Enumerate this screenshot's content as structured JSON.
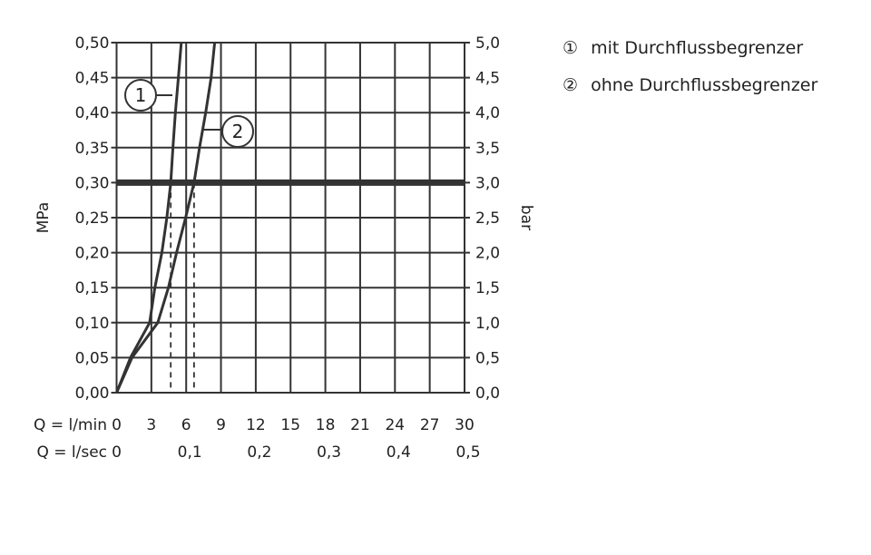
{
  "chart_data": {
    "type": "line",
    "xlabel_rows": [
      "Q = l/min",
      "Q = l/sec"
    ],
    "x_ticks_lmin": [
      "0",
      "3",
      "6",
      "9",
      "12",
      "15",
      "18",
      "21",
      "24",
      "27",
      "30"
    ],
    "x_ticks_lsec": [
      {
        "label": "0",
        "lmin": 0
      },
      {
        "label": "0,1",
        "lmin": 6
      },
      {
        "label": "0,2",
        "lmin": 12
      },
      {
        "label": "0,3",
        "lmin": 18
      },
      {
        "label": "0,4",
        "lmin": 24
      },
      {
        "label": "0,5",
        "lmin": 30
      }
    ],
    "xlim": [
      0,
      30
    ],
    "ylabel_left": "MPa",
    "ylabel_right": "bar",
    "ylim": [
      0,
      0.5
    ],
    "y_ticks_left": [
      "0,00",
      "0,05",
      "0,10",
      "0,15",
      "0,20",
      "0,25",
      "0,30",
      "0,35",
      "0,40",
      "0,45",
      "0,50"
    ],
    "y_ticks_right": [
      "0,0",
      "0,5",
      "1,0",
      "1,5",
      "2,0",
      "2,5",
      "3,0",
      "3,5",
      "4,0",
      "4,5",
      "5,0"
    ],
    "grid": true,
    "reference_line_y": 0.3,
    "series": [
      {
        "name": "1",
        "x": [
          0,
          1.2,
          2.85,
          3.3,
          3.9,
          4.33,
          4.67,
          4.86,
          5.07,
          5.33,
          5.58
        ],
        "y": [
          0,
          0.05,
          0.1,
          0.15,
          0.2,
          0.25,
          0.3,
          0.35,
          0.4,
          0.45,
          0.5
        ],
        "marker_x_at_ref": 4.67
      },
      {
        "name": "2",
        "x": [
          0,
          1.33,
          3.55,
          4.47,
          5.17,
          5.95,
          6.68,
          7.15,
          7.68,
          8.15,
          8.46
        ],
        "y": [
          0,
          0.05,
          0.1,
          0.15,
          0.2,
          0.25,
          0.3,
          0.35,
          0.4,
          0.45,
          0.5
        ],
        "marker_x_at_ref": 6.68
      }
    ],
    "legend": [
      {
        "symbol": "①",
        "label": "mit Durchflussbegrenzer"
      },
      {
        "symbol": "②",
        "label": "ohne Durchflussbegrenzer"
      }
    ],
    "legend_position": "top-right",
    "color": "#333333"
  }
}
